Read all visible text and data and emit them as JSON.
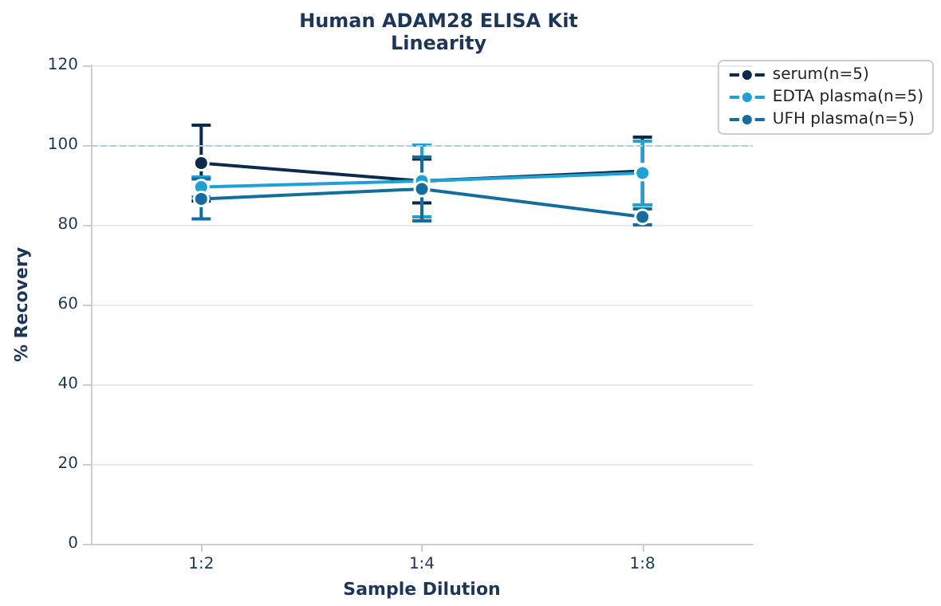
{
  "chart_data": {
    "type": "line",
    "title": "Human ADAM28 ELISA Kit",
    "subtitle": "Linearity",
    "xlabel": "Sample Dilution",
    "ylabel": "% Recovery",
    "categories": [
      "1:2",
      "1:4",
      "1:8"
    ],
    "series": [
      {
        "name": "serum(n=5)",
        "color": "#0d2a4a",
        "values": [
          95.5,
          91,
          93.5
        ],
        "errors": [
          9.5,
          5.5,
          8.5
        ]
      },
      {
        "name": "EDTA plasma(n=5)",
        "color": "#1ea1d5",
        "values": [
          89.5,
          91,
          93
        ],
        "errors": [
          2.5,
          9,
          8
        ]
      },
      {
        "name": "UFH plasma(n=5)",
        "color": "#156d9e",
        "values": [
          86.5,
          89,
          82
        ],
        "errors": [
          5,
          8,
          2
        ]
      }
    ],
    "ylim": [
      0,
      120
    ],
    "yticks": [
      0,
      20,
      40,
      60,
      80,
      100,
      120
    ],
    "grid": "y",
    "legend": "top right",
    "marker": "circle",
    "line_style": "solid",
    "ref_lines": [
      {
        "axis": "y",
        "value": 100,
        "color": "#9fd3e6",
        "line_style": "dashed"
      }
    ]
  }
}
